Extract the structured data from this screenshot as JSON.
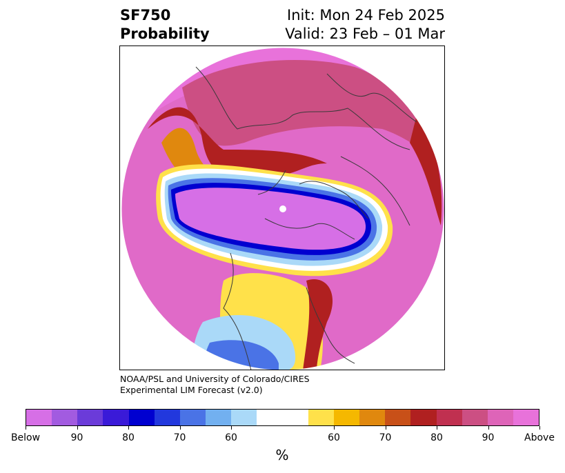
{
  "title": {
    "left_line1": "SF750",
    "left_line2": "Probability",
    "right_line1": "Init: Mon 24 Feb 2025",
    "right_line2": "Valid: 23 Feb – 01 Mar"
  },
  "credits": {
    "line1": "NOAA/PSL and University of Colorado/CIRES",
    "line2": "Experimental LIM Forecast (v2.0)"
  },
  "colorbar": {
    "colors": [
      "#d66fe6",
      "#a25be0",
      "#6b3bd9",
      "#3a1ad8",
      "#0000d0",
      "#2238dd",
      "#4a73e6",
      "#72b0f0",
      "#aad9f8",
      "#ffffff",
      "#ffffff",
      "#ffe14a",
      "#f5b800",
      "#e0880e",
      "#c85018",
      "#b02020",
      "#c03050",
      "#cc4f83",
      "#de64b8",
      "#e872da"
    ],
    "tick_labels": [
      "Below",
      "90",
      "80",
      "70",
      "60",
      "60",
      "70",
      "80",
      "90",
      "Above"
    ],
    "unit": "%"
  },
  "map": {
    "projection": "north-polar-stereographic",
    "colors": {
      "above_90": "#e872da",
      "above_80": "#cc4f83",
      "above_70": "#b02020",
      "above_60": "#e0880e",
      "above_50": "#ffe14a",
      "below_50": "#aad9f8",
      "below_70": "#4a73e6",
      "below_90": "#0000d0",
      "below_max": "#d66fe6",
      "coast": "#3a3a3a"
    }
  }
}
